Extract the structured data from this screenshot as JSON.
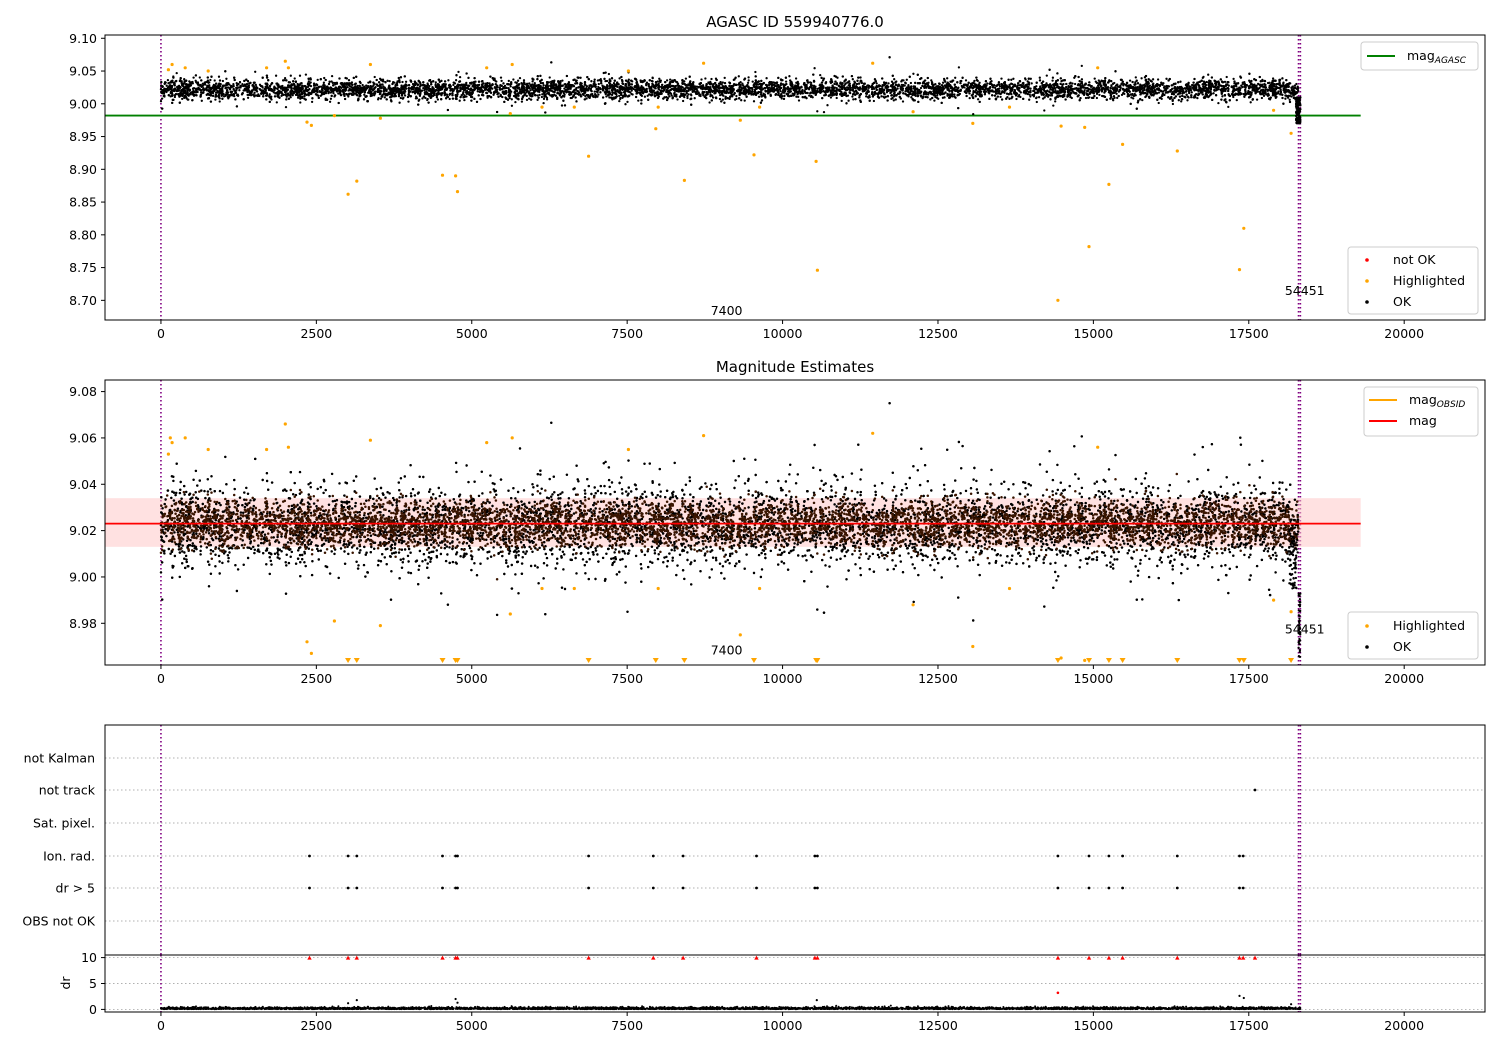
{
  "chart_data": [
    {
      "type": "scatter",
      "title": "AGASC ID 559940776.0",
      "xlabel": "",
      "ylabel": "",
      "xlim": [
        -900,
        21300
      ],
      "ylim": [
        8.67,
        9.105
      ],
      "xticks": [
        0,
        2500,
        5000,
        7500,
        10000,
        12500,
        15000,
        17500,
        20000
      ],
      "yticks": [
        8.7,
        8.75,
        8.8,
        8.85,
        8.9,
        8.95,
        9.0,
        9.05,
        9.1
      ],
      "ytick_labels": [
        "8.70",
        "8.75",
        "8.80",
        "8.85",
        "8.90",
        "8.95",
        "9.00",
        "9.05",
        "9.10"
      ],
      "grid": false,
      "hline": {
        "name": "mag",
        "subscript": "AGASC",
        "y": 8.982,
        "x_end": 19300,
        "color": "#008000"
      },
      "vlines": [
        0,
        18300,
        18330
      ],
      "annotations": [
        {
          "text": "7400",
          "x": 9100,
          "y": 8.678
        },
        {
          "text": "54451",
          "x": 18400,
          "y": 8.708
        }
      ],
      "ok_band": {
        "center": 9.022,
        "sigma": 0.011,
        "x_start": 0,
        "x_end": 18300
      },
      "series": [
        {
          "name": "not OK",
          "color": "#ff0000",
          "points": []
        },
        {
          "name": "Highlighted",
          "color": "#ffa500",
          "points": [
            [
              120,
              9.052
            ],
            [
              180,
              9.06
            ],
            [
              390,
              9.055
            ],
            [
              760,
              9.05
            ],
            [
              1700,
              9.055
            ],
            [
              2000,
              9.065
            ],
            [
              2050,
              9.055
            ],
            [
              2350,
              8.972
            ],
            [
              2420,
              8.967
            ],
            [
              2790,
              8.982
            ],
            [
              3010,
              8.862
            ],
            [
              3150,
              8.882
            ],
            [
              3370,
              9.06
            ],
            [
              3530,
              8.978
            ],
            [
              4530,
              8.891
            ],
            [
              4740,
              8.89
            ],
            [
              4770,
              8.866
            ],
            [
              5240,
              9.055
            ],
            [
              5620,
              8.985
            ],
            [
              5650,
              9.06
            ],
            [
              6130,
              8.995
            ],
            [
              6650,
              8.995
            ],
            [
              6880,
              8.92
            ],
            [
              7520,
              9.05
            ],
            [
              7960,
              8.962
            ],
            [
              8000,
              8.995
            ],
            [
              8420,
              8.883
            ],
            [
              8730,
              9.062
            ],
            [
              9320,
              8.975
            ],
            [
              9540,
              8.922
            ],
            [
              9630,
              8.995
            ],
            [
              10540,
              8.912
            ],
            [
              10560,
              8.746
            ],
            [
              11450,
              9.062
            ],
            [
              12100,
              8.988
            ],
            [
              13060,
              8.97
            ],
            [
              13650,
              8.995
            ],
            [
              14430,
              8.7
            ],
            [
              14480,
              8.966
            ],
            [
              14860,
              8.964
            ],
            [
              14930,
              8.782
            ],
            [
              15070,
              9.055
            ],
            [
              15250,
              8.877
            ],
            [
              15470,
              8.938
            ],
            [
              16350,
              8.928
            ],
            [
              17350,
              8.747
            ],
            [
              17420,
              8.81
            ],
            [
              17900,
              8.99
            ],
            [
              18180,
              8.955
            ]
          ]
        },
        {
          "name": "OK",
          "color": "#000000",
          "points": []
        }
      ],
      "legends": [
        {
          "position": "upper-right",
          "entries": [
            {
              "label": "mag",
              "subscript": "AGASC",
              "kind": "line",
              "color": "#008000"
            }
          ]
        },
        {
          "position": "lower-right",
          "entries": [
            {
              "label": "not OK",
              "kind": "marker",
              "color": "#ff0000"
            },
            {
              "label": "Highlighted",
              "kind": "marker",
              "color": "#ffa500"
            },
            {
              "label": "OK",
              "kind": "marker",
              "color": "#000000"
            }
          ]
        }
      ]
    },
    {
      "type": "scatter",
      "title": "Magnitude Estimates",
      "xlabel": "",
      "ylabel": "",
      "xlim": [
        -900,
        21300
      ],
      "ylim": [
        8.962,
        9.085
      ],
      "xticks": [
        0,
        2500,
        5000,
        7500,
        10000,
        12500,
        15000,
        17500,
        20000
      ],
      "yticks": [
        8.98,
        9.0,
        9.02,
        9.04,
        9.06,
        9.08
      ],
      "ytick_labels": [
        "8.98",
        "9.00",
        "9.02",
        "9.04",
        "9.06",
        "9.08"
      ],
      "grid": false,
      "hline": {
        "name": "mag",
        "y": 9.023,
        "x_end": 19300,
        "color": "#ff0000"
      },
      "band": {
        "name": "mag",
        "y_low": 9.013,
        "y_high": 9.034,
        "x_end": 19300,
        "color": "#ffc8c8"
      },
      "vlines": [
        0,
        18300,
        18330
      ],
      "annotations": [
        {
          "text": "7400",
          "x": 9100,
          "y": 8.9665
        },
        {
          "text": "54451",
          "x": 18400,
          "y": 8.9755
        }
      ],
      "ok_band": {
        "center": 9.022,
        "sigma": 0.011,
        "x_start": 0,
        "x_end": 18300
      },
      "series": [
        {
          "name": "Highlighted",
          "color": "#ffa500",
          "points": [
            [
              120,
              9.053
            ],
            [
              150,
              9.06
            ],
            [
              180,
              9.058
            ],
            [
              390,
              9.06
            ],
            [
              760,
              9.055
            ],
            [
              1700,
              9.055
            ],
            [
              2000,
              9.066
            ],
            [
              2050,
              9.056
            ],
            [
              2350,
              8.972
            ],
            [
              2420,
              8.967
            ],
            [
              2790,
              8.981
            ],
            [
              3370,
              9.059
            ],
            [
              3530,
              8.979
            ],
            [
              5240,
              9.058
            ],
            [
              5620,
              8.984
            ],
            [
              5650,
              9.06
            ],
            [
              6130,
              8.995
            ],
            [
              6650,
              8.995
            ],
            [
              7520,
              9.055
            ],
            [
              8000,
              8.995
            ],
            [
              8730,
              9.061
            ],
            [
              9320,
              8.975
            ],
            [
              9630,
              8.995
            ],
            [
              11450,
              9.062
            ],
            [
              12100,
              8.988
            ],
            [
              13060,
              8.97
            ],
            [
              13650,
              8.995
            ],
            [
              14480,
              8.965
            ],
            [
              14860,
              8.964
            ],
            [
              15070,
              9.056
            ],
            [
              17900,
              8.99
            ],
            [
              18180,
              8.985
            ]
          ],
          "floor_markers": [
            3010,
            3150,
            4530,
            4740,
            4770,
            6880,
            7960,
            8420,
            9540,
            10540,
            10560,
            14430,
            14930,
            15250,
            15470,
            16350,
            17350,
            17420,
            18180
          ]
        },
        {
          "name": "OK",
          "color": "#000000",
          "points": []
        }
      ],
      "legends": [
        {
          "position": "upper-right",
          "entries": [
            {
              "label": "mag",
              "subscript": "OBSID",
              "kind": "line",
              "color": "#ffa500"
            },
            {
              "label": "mag",
              "kind": "line",
              "color": "#ff0000"
            }
          ]
        },
        {
          "position": "lower-right",
          "entries": [
            {
              "label": "Highlighted",
              "kind": "marker",
              "color": "#ffa500"
            },
            {
              "label": "OK",
              "kind": "marker",
              "color": "#000000"
            }
          ]
        }
      ]
    },
    {
      "type": "scatter",
      "title": "",
      "xlabel": "",
      "ylabel": "",
      "xlim": [
        -900,
        21300
      ],
      "categories": [
        "not Kalman",
        "not track",
        "Sat. pixel.",
        "Ion. rad.",
        "dr > 5",
        "OBS not OK"
      ],
      "grid": true,
      "vlines": [
        0,
        18300,
        18330
      ],
      "flag_points": {
        "not Kalman": [],
        "not track": [
          17600
        ],
        "Sat. pixel.": [],
        "Ion. rad.": [
          2390,
          3010,
          3150,
          4530,
          4740,
          4770,
          6880,
          7920,
          8400,
          9580,
          10520,
          10560,
          14430,
          14930,
          15250,
          15470,
          16350,
          17350,
          17410
        ],
        "dr > 5": [
          2390,
          3010,
          3150,
          4530,
          4740,
          4770,
          6880,
          7920,
          8400,
          9580,
          10520,
          10560,
          14430,
          14930,
          15250,
          15470,
          16350,
          17350,
          17410
        ],
        "OBS not OK": []
      }
    },
    {
      "type": "scatter",
      "title": "",
      "xlabel": "",
      "ylabel": "dr",
      "xlim": [
        -900,
        21300
      ],
      "ylim": [
        -0.5,
        10.5
      ],
      "yticks": [
        0,
        5,
        10
      ],
      "ytick_labels": [
        "0",
        "5",
        "10"
      ],
      "xticks": [
        0,
        2500,
        5000,
        7500,
        10000,
        12500,
        15000,
        17500,
        20000
      ],
      "grid": true,
      "vlines": [
        0,
        18300,
        18330
      ],
      "series": [
        {
          "name": "dr capped",
          "color": "#ff0000",
          "points": [
            [
              2390,
              10
            ],
            [
              3010,
              10
            ],
            [
              3150,
              10
            ],
            [
              4530,
              10
            ],
            [
              4740,
              10
            ],
            [
              4770,
              10
            ],
            [
              6880,
              10
            ],
            [
              7920,
              10
            ],
            [
              8400,
              10
            ],
            [
              9580,
              10
            ],
            [
              10520,
              10
            ],
            [
              10560,
              10
            ],
            [
              14430,
              10
            ],
            [
              14930,
              10
            ],
            [
              15250,
              10
            ],
            [
              15470,
              10
            ],
            [
              16350,
              10
            ],
            [
              17350,
              10
            ],
            [
              17410,
              10
            ],
            [
              17600,
              10
            ]
          ]
        },
        {
          "name": "dr outliers",
          "color": "#ff0000",
          "points": [
            [
              14430,
              3.2
            ]
          ]
        },
        {
          "name": "dr",
          "color": "#000000",
          "points": [
            [
              3010,
              1.2
            ],
            [
              3150,
              1.8
            ],
            [
              4740,
              2.0
            ],
            [
              4770,
              1.3
            ],
            [
              10550,
              1.8
            ],
            [
              17350,
              2.6
            ],
            [
              17420,
              2.2
            ],
            [
              18180,
              1.0
            ]
          ]
        }
      ]
    }
  ]
}
